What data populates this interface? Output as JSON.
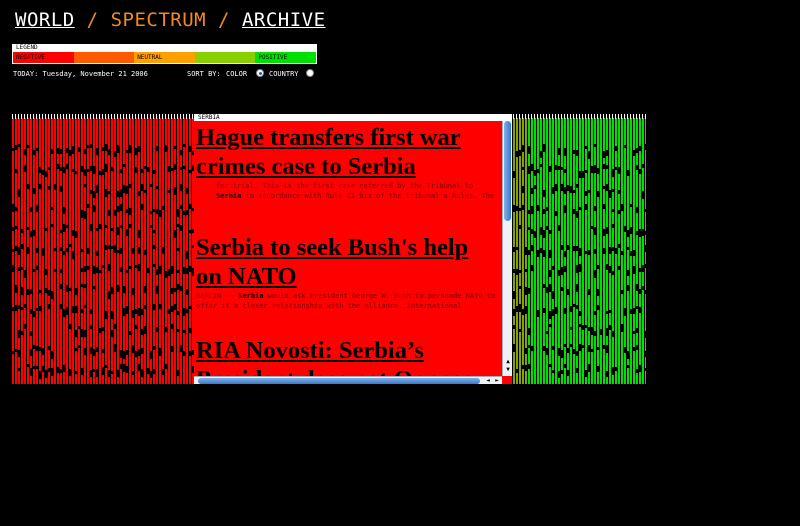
{
  "nav": {
    "world": "WORLD",
    "sep1": "/",
    "spectrum": "SPECTRUM",
    "sep2": "/",
    "archive": "ARCHIVE"
  },
  "legend": {
    "title": "LEGEND",
    "segments": [
      {
        "label": "NEGATIVE",
        "color": "#ff0000"
      },
      {
        "label": "",
        "color": "#ff5a00"
      },
      {
        "label": "NEUTRAL",
        "color": "#ffa000"
      },
      {
        "label": "",
        "color": "#88d000"
      },
      {
        "label": "POSITIVE",
        "color": "#00e000"
      }
    ]
  },
  "status": {
    "today": "TODAY: Tuesday, November 21 2006",
    "sort_label": "SORT BY:",
    "option_color": "COLOR",
    "option_country": "COUNTRY",
    "selected": "COLOR"
  },
  "panel": {
    "country": "SERBIA",
    "articles": [
      {
        "headline": "Hague transfers first war crimes case to Serbia",
        "snippet_pre": "for trial. This is the first case referred by the Tribunal to",
        "snippet_bold": "Serbia",
        "snippet_post": "in accordance with Rule 11 bis of the Tribunal's Rules. The"
      },
      {
        "headline": "Serbia to seek Bush's help on NATO",
        "snippet_pre": "BERLIN --",
        "snippet_bold": "Serbia",
        "snippet_post": "would ask President George W. Bush to persuade NATO to offer it a closer relationship with the alliance. International"
      },
      {
        "headline": "RIA Novosti: Serbia’s President does not Oppose"
      }
    ]
  },
  "colors": {
    "negative": "#ff0000",
    "positive": "#00e000",
    "transition": "#8aa000",
    "accent": "#f08a22"
  },
  "icons": {
    "scroll_up": "▲",
    "scroll_down": "▼",
    "scroll_left": "◄",
    "scroll_right": "►"
  }
}
